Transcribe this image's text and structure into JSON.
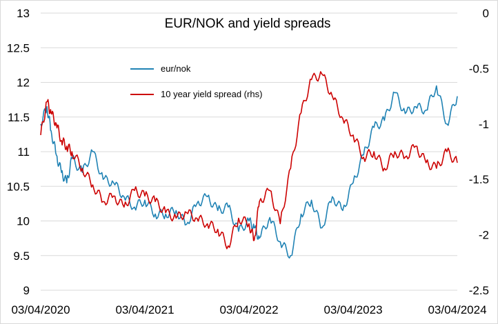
{
  "chart_data": {
    "type": "line",
    "title": "EUR/NOK and yield spreads",
    "x_ticks": [
      "03/04/2020",
      "03/04/2021",
      "03/04/2022",
      "03/04/2023",
      "03/04/2024"
    ],
    "y_left": {
      "min": 9,
      "max": 13,
      "ticks": [
        "9",
        "9.5",
        "10",
        "10.5",
        "11",
        "11.5",
        "12",
        "12.5",
        "13"
      ]
    },
    "y_right": {
      "min": -2.5,
      "max": 0,
      "ticks": [
        "-2.5",
        "-2",
        "-1.5",
        "-1",
        "-0.5",
        "0"
      ]
    },
    "grid": "horizontal",
    "legend_position": "top-left",
    "series": [
      {
        "name": "eur/nok",
        "axis": "left",
        "color": "#1f82b4",
        "x": [
          2020.0,
          2020.06,
          2020.1,
          2020.15,
          2020.2,
          2020.25,
          2020.3,
          2020.4,
          2020.5,
          2020.6,
          2020.7,
          2020.8,
          2020.9,
          2021.0,
          2021.1,
          2021.2,
          2021.3,
          2021.4,
          2021.5,
          2021.6,
          2021.7,
          2021.8,
          2021.9,
          2022.0,
          2022.05,
          2022.1,
          2022.2,
          2022.3,
          2022.4,
          2022.5,
          2022.6,
          2022.7,
          2022.8,
          2022.9,
          2023.0,
          2023.1,
          2023.2,
          2023.3,
          2023.4,
          2023.5,
          2023.6,
          2023.7,
          2023.8,
          2023.9,
          2024.0
        ],
        "y": [
          11.4,
          11.65,
          11.3,
          10.95,
          10.7,
          10.55,
          10.9,
          10.7,
          11.0,
          10.6,
          10.55,
          10.35,
          10.2,
          10.3,
          10.1,
          10.1,
          10.15,
          9.95,
          10.25,
          10.35,
          10.15,
          10.2,
          9.85,
          10.0,
          9.9,
          9.75,
          10.05,
          9.7,
          9.5,
          10.1,
          10.3,
          9.9,
          10.35,
          10.15,
          10.55,
          10.95,
          11.35,
          11.45,
          11.85,
          11.55,
          11.65,
          11.6,
          11.95,
          11.4,
          11.8
        ]
      },
      {
        "name": "10 year yield spread (rhs)",
        "axis": "right",
        "color": "#cc0000",
        "x": [
          2020.0,
          2020.06,
          2020.1,
          2020.15,
          2020.2,
          2020.25,
          2020.3,
          2020.4,
          2020.5,
          2020.6,
          2020.7,
          2020.8,
          2020.9,
          2021.0,
          2021.1,
          2021.2,
          2021.3,
          2021.4,
          2021.5,
          2021.6,
          2021.7,
          2021.8,
          2021.9,
          2022.0,
          2022.05,
          2022.1,
          2022.2,
          2022.3,
          2022.4,
          2022.5,
          2022.6,
          2022.7,
          2022.8,
          2022.9,
          2023.0,
          2023.1,
          2023.2,
          2023.3,
          2023.4,
          2023.5,
          2023.6,
          2023.7,
          2023.8,
          2023.9,
          2024.0
        ],
        "y": [
          -1.1,
          -0.8,
          -0.9,
          -1.0,
          -1.15,
          -1.2,
          -1.25,
          -1.4,
          -1.55,
          -1.7,
          -1.65,
          -1.75,
          -1.6,
          -1.65,
          -1.7,
          -1.8,
          -1.85,
          -1.8,
          -1.85,
          -1.9,
          -1.95,
          -2.1,
          -1.85,
          -1.9,
          -2.05,
          -1.7,
          -1.6,
          -1.9,
          -1.4,
          -0.9,
          -0.6,
          -0.55,
          -0.75,
          -0.95,
          -1.1,
          -1.3,
          -1.25,
          -1.4,
          -1.25,
          -1.3,
          -1.2,
          -1.35,
          -1.4,
          -1.25,
          -1.35
        ]
      }
    ]
  }
}
